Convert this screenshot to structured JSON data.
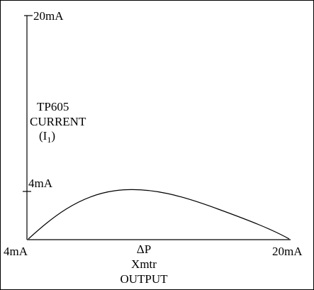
{
  "diagram": {
    "y_axis": {
      "top_label": "20mA",
      "mark_label": "4mA",
      "title_lines": [
        "TP605",
        "CURRENT"
      ],
      "title_symbol": "I",
      "title_symbol_subscript": "1"
    },
    "x_axis": {
      "left_label": "4mA",
      "right_label": "20mA",
      "title_lines": [
        "ΔP",
        "Xmtr",
        "OUTPUT"
      ]
    },
    "colors": {
      "background": "#ffffff",
      "ink": "#000000"
    }
  }
}
